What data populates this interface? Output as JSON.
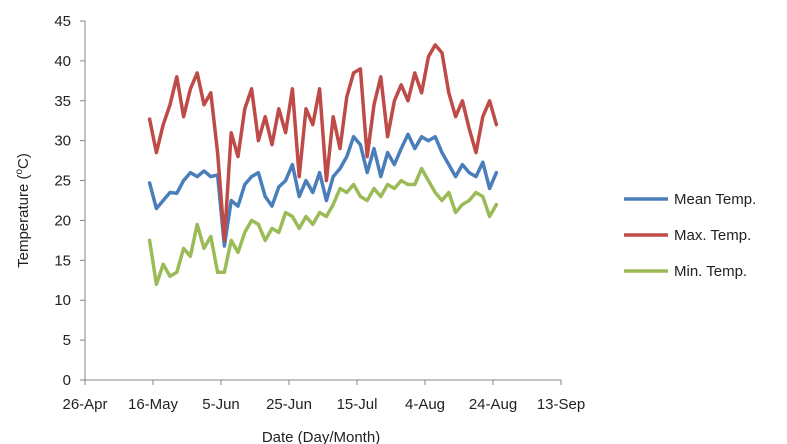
{
  "chart_data": {
    "type": "line",
    "xlabel": "Date (Day/Month)",
    "ylabel_prefix": "Temperature (",
    "ylabel_sup": "o",
    "ylabel_suffix": "C)",
    "ylim": [
      0,
      45
    ],
    "ytick_values": [
      0,
      5,
      10,
      15,
      20,
      25,
      30,
      35,
      40,
      45
    ],
    "x_axis_range": [
      "2013-04-26",
      "2013-09-13"
    ],
    "xticks": [
      {
        "date": "2013-04-26",
        "label": "26-Apr"
      },
      {
        "date": "2013-05-16",
        "label": "16-May"
      },
      {
        "date": "2013-06-05",
        "label": "5-Jun"
      },
      {
        "date": "2013-06-25",
        "label": "25-Jun"
      },
      {
        "date": "2013-07-15",
        "label": "15-Jul"
      },
      {
        "date": "2013-08-04",
        "label": "4-Aug"
      },
      {
        "date": "2013-08-24",
        "label": "24-Aug"
      },
      {
        "date": "2013-09-13",
        "label": "13-Sep"
      }
    ],
    "grid": false,
    "legend_position": "right",
    "x": [
      "2013-05-15",
      "2013-05-17",
      "2013-05-19",
      "2013-05-21",
      "2013-05-23",
      "2013-05-25",
      "2013-05-27",
      "2013-05-29",
      "2013-05-31",
      "2013-06-02",
      "2013-06-04",
      "2013-06-06",
      "2013-06-08",
      "2013-06-10",
      "2013-06-12",
      "2013-06-14",
      "2013-06-16",
      "2013-06-18",
      "2013-06-20",
      "2013-06-22",
      "2013-06-24",
      "2013-06-26",
      "2013-06-28",
      "2013-06-30",
      "2013-07-02",
      "2013-07-04",
      "2013-07-06",
      "2013-07-08",
      "2013-07-10",
      "2013-07-12",
      "2013-07-14",
      "2013-07-16",
      "2013-07-18",
      "2013-07-20",
      "2013-07-22",
      "2013-07-24",
      "2013-07-26",
      "2013-07-28",
      "2013-07-30",
      "2013-08-01",
      "2013-08-03",
      "2013-08-05",
      "2013-08-07",
      "2013-08-09",
      "2013-08-11",
      "2013-08-13",
      "2013-08-15",
      "2013-08-17",
      "2013-08-19",
      "2013-08-21",
      "2013-08-23",
      "2013-08-25"
    ],
    "series": [
      {
        "name": "Mean Temp.",
        "color": "#4a7ebb",
        "values": [
          24.7,
          21.5,
          22.5,
          23.5,
          23.4,
          25.0,
          26.0,
          25.5,
          26.2,
          25.5,
          25.7,
          16.8,
          22.5,
          21.8,
          24.5,
          25.5,
          26.0,
          23.0,
          21.8,
          24.2,
          25.0,
          27.0,
          23.0,
          25.0,
          23.5,
          26.0,
          22.5,
          25.5,
          26.5,
          28.0,
          30.5,
          29.5,
          26.0,
          29.0,
          25.5,
          28.5,
          27.0,
          29.0,
          30.8,
          29.0,
          30.5,
          30.0,
          30.5,
          28.5,
          27.0,
          25.5,
          27.0,
          26.0,
          25.5,
          27.3,
          24.0,
          26.0
        ]
      },
      {
        "name": "Max. Temp.",
        "color": "#be4b48",
        "values": [
          32.7,
          28.5,
          32.0,
          34.5,
          38.0,
          33.0,
          36.5,
          38.5,
          34.5,
          36.0,
          28.5,
          17.5,
          31.0,
          28.0,
          34.0,
          36.5,
          30.0,
          33.0,
          29.5,
          34.0,
          31.0,
          36.5,
          25.5,
          34.0,
          32.0,
          36.5,
          25.0,
          33.0,
          29.0,
          35.5,
          38.5,
          39.0,
          28.0,
          34.5,
          38.0,
          30.5,
          35.0,
          37.0,
          35.0,
          38.5,
          36.0,
          40.5,
          42.0,
          41.0,
          36.0,
          33.0,
          35.0,
          31.5,
          28.5,
          33.0,
          35.0,
          32.0
        ]
      },
      {
        "name": "Min. Temp.",
        "color": "#9bbb59",
        "values": [
          17.5,
          12.0,
          14.5,
          13.0,
          13.5,
          16.5,
          15.5,
          19.5,
          16.5,
          18.0,
          13.5,
          13.5,
          17.5,
          16.0,
          18.5,
          20.0,
          19.5,
          17.5,
          19.0,
          18.5,
          21.0,
          20.5,
          19.0,
          20.5,
          19.5,
          21.0,
          20.5,
          22.0,
          24.0,
          23.5,
          24.5,
          23.0,
          22.5,
          24.0,
          23.0,
          24.5,
          24.0,
          25.0,
          24.5,
          24.5,
          26.5,
          25.0,
          23.5,
          22.5,
          23.5,
          21.0,
          22.0,
          22.5,
          23.5,
          23.0,
          20.5,
          22.0
        ]
      }
    ]
  }
}
